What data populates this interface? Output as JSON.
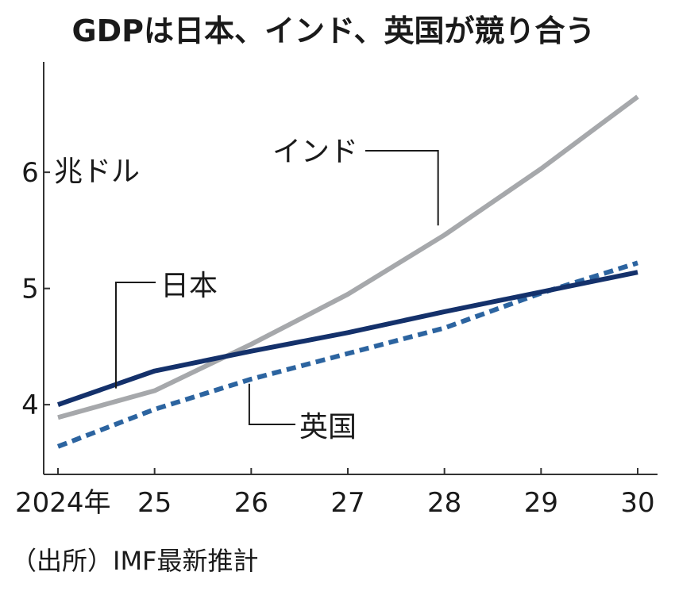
{
  "chart_data": {
    "type": "line",
    "title": "GDPは日本、インド、英国が競り合う",
    "ylabel": "兆ドル",
    "ylim": [
      3.4,
      6.95
    ],
    "xlim": [
      2024,
      2030
    ],
    "x": [
      2024,
      2025,
      2026,
      2027,
      2028,
      2029,
      2030
    ],
    "x_tick_labels": [
      "2024年",
      "25",
      "26",
      "27",
      "28",
      "29",
      "30"
    ],
    "y_ticks": [
      4,
      5,
      6
    ],
    "y_tick_labels": [
      "4",
      "5",
      "6"
    ],
    "grid": false,
    "series": [
      {
        "name": "インド",
        "color": "#a6a8ab",
        "style": "solid",
        "values": [
          3.89,
          4.12,
          4.52,
          4.95,
          5.46,
          6.03,
          6.65
        ]
      },
      {
        "name": "日本",
        "color": "#14316b",
        "style": "solid",
        "values": [
          4.0,
          4.29,
          4.46,
          4.62,
          4.8,
          4.97,
          5.14
        ]
      },
      {
        "name": "英国",
        "color": "#2c64a0",
        "style": "dashed",
        "values": [
          3.64,
          3.96,
          4.22,
          4.44,
          4.66,
          4.96,
          5.22
        ]
      }
    ],
    "source": "（出所）IMF最新推計"
  }
}
